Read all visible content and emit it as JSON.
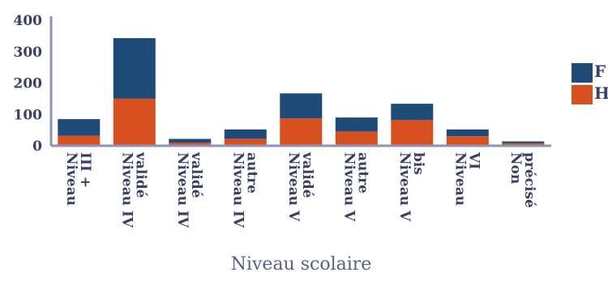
{
  "chart_data": {
    "type": "bar",
    "stacked": true,
    "categories": [
      "Niveau III +",
      "Niveau IV validé",
      "Niveau IV validé",
      "Niveau IV autre",
      "Niveau V validé",
      "Niveau V autre",
      "Niveau V bis",
      "Niveau VI",
      "Non précisé"
    ],
    "category_lines": [
      [
        "Niveau",
        "III +"
      ],
      [
        "Niveau IV",
        "validé"
      ],
      [
        "Niveau IV",
        "validé"
      ],
      [
        "Niveau IV",
        "autre"
      ],
      [
        "Niveau V",
        "validé"
      ],
      [
        "Niveau V",
        "autre"
      ],
      [
        "Niveau V",
        "bis"
      ],
      [
        "Niveau",
        "VI"
      ],
      [
        "Non",
        "précisé"
      ]
    ],
    "series": [
      {
        "name": "H",
        "values": [
          32,
          150,
          10,
          22,
          87,
          45,
          82,
          30,
          8
        ],
        "color": "#d7501e"
      },
      {
        "name": "F",
        "values": [
          53,
          193,
          12,
          30,
          80,
          45,
          52,
          22,
          6
        ],
        "color": "#1f4b79"
      }
    ],
    "legend_order": [
      "F",
      "H"
    ],
    "legend_position": "right",
    "xlabel": "Niveau scolaire",
    "ylabel": "",
    "ylim": [
      0,
      400
    ],
    "yticks": [
      0,
      100,
      200,
      300,
      400
    ],
    "grid": false,
    "colors": {
      "axis": "#8e92b4",
      "text": "#3b3f68"
    }
  }
}
